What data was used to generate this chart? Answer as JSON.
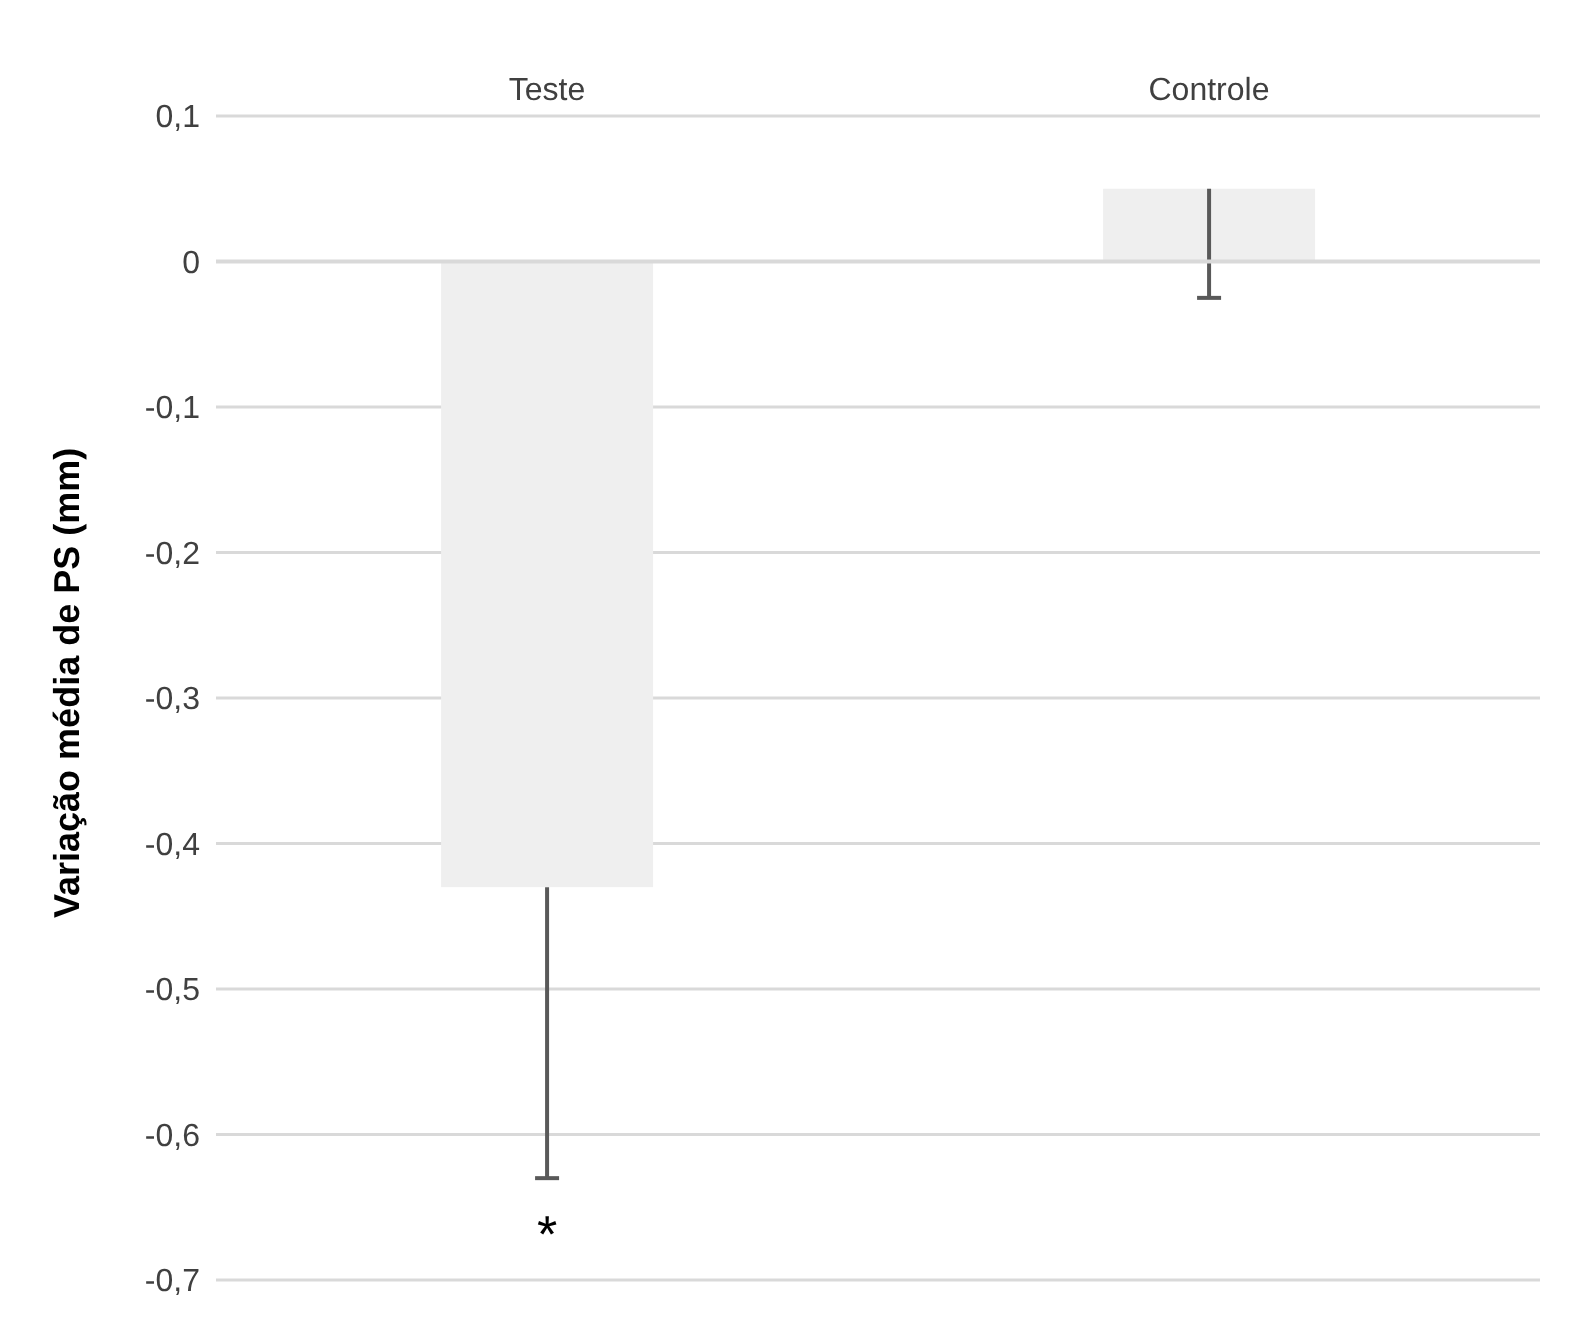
{
  "chart_data": {
    "type": "bar",
    "ylabel": "Variação média de PS  (mm)",
    "categories": [
      "Teste",
      "Controle"
    ],
    "values": [
      -0.43,
      0.05
    ],
    "errors": [
      [
        -0.63,
        -0.43
      ],
      [
        -0.025,
        0.05
      ]
    ],
    "color": "#efefef",
    "ylim": [
      -0.7,
      0.1
    ],
    "yticks": [
      {
        "value": 0.1,
        "label": "0,1"
      },
      {
        "value": 0,
        "label": "0"
      },
      {
        "value": -0.1,
        "label": "-0,1"
      },
      {
        "value": -0.2,
        "label": "-0,2"
      },
      {
        "value": -0.3,
        "label": "-0,3"
      },
      {
        "value": -0.4,
        "label": "-0,4"
      },
      {
        "value": -0.5,
        "label": "-0,5"
      },
      {
        "value": -0.6,
        "label": "-0,6"
      },
      {
        "value": -0.7,
        "label": "-0,7"
      }
    ],
    "grid": "y",
    "annotations": [
      "*"
    ]
  }
}
